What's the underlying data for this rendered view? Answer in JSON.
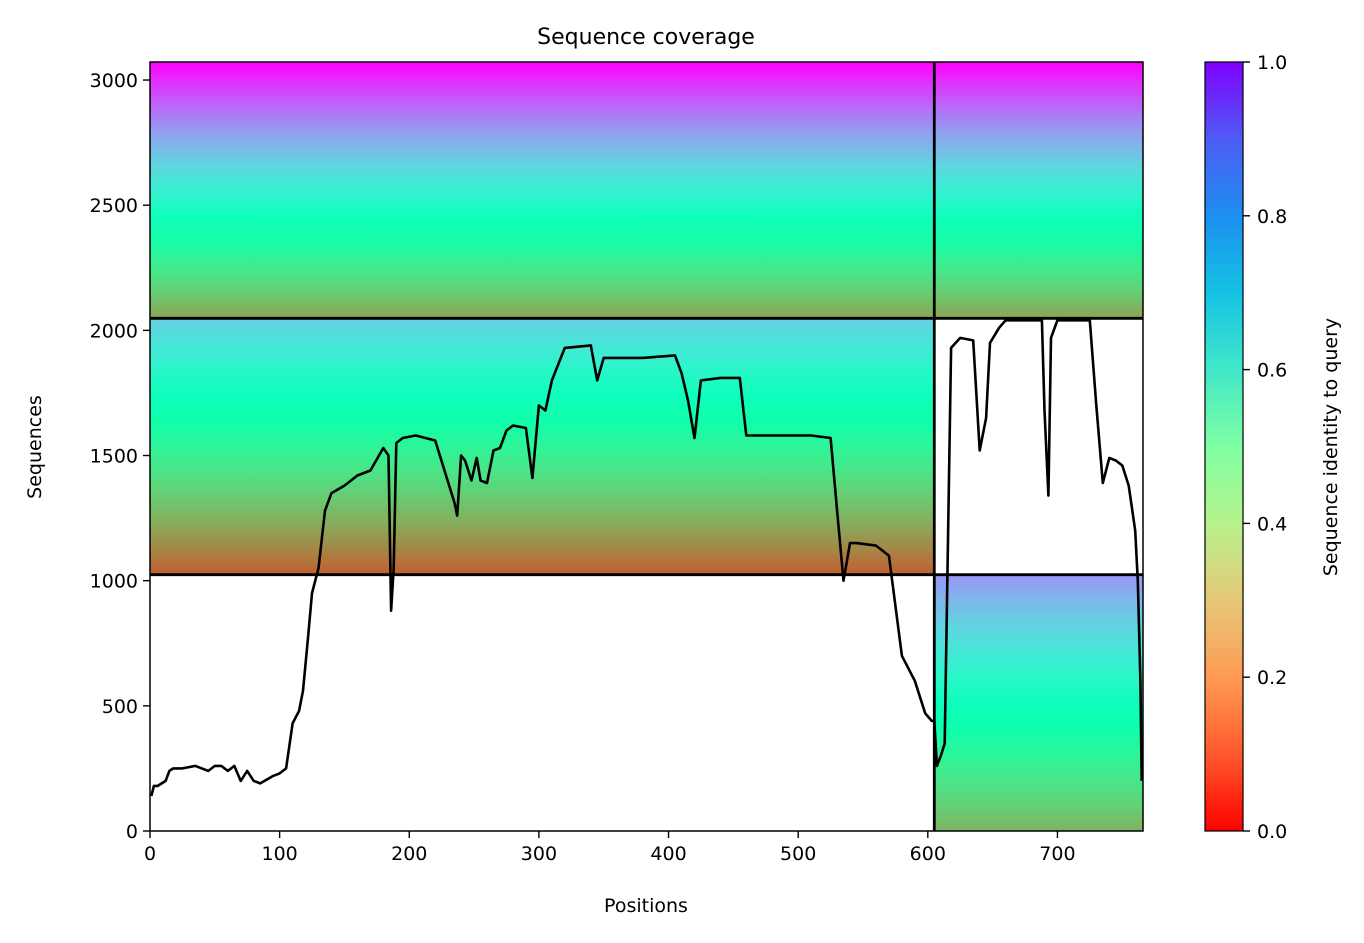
{
  "chart_data": {
    "type": "heatmap",
    "title": "Sequence coverage",
    "xlabel": "Positions",
    "ylabel": "Sequences",
    "xlim": [
      0,
      766
    ],
    "ylim": [
      0,
      3072
    ],
    "xticks": [
      0,
      100,
      200,
      300,
      400,
      500,
      600,
      700
    ],
    "yticks": [
      0,
      500,
      1000,
      1500,
      2000,
      2500,
      3000
    ],
    "xtick_labels": [
      "0",
      "100",
      "200",
      "300",
      "400",
      "500",
      "600",
      "700"
    ],
    "ytick_labels": [
      "0",
      "500",
      "1000",
      "1500",
      "2000",
      "2500",
      "3000"
    ],
    "grid": false,
    "colormap": "rainbow_r",
    "colorbar": {
      "label": "Sequence identity to query",
      "range": [
        0.0,
        1.0
      ],
      "ticks": [
        0.0,
        0.2,
        0.4,
        0.6,
        0.8,
        1.0
      ],
      "tick_labels": [
        "0.0",
        "0.2",
        "0.4",
        "0.6",
        "0.8",
        "1.0"
      ]
    },
    "chain_boundaries_x": [
      605
    ],
    "block_boundaries_y": [
      1024,
      2048
    ],
    "blocks": [
      {
        "x": [
          0,
          605
        ],
        "y": [
          2048,
          3072
        ],
        "identity_top": 1.0,
        "identity_bottom": 0.22
      },
      {
        "x": [
          605,
          766
        ],
        "y": [
          2048,
          3072
        ],
        "identity_top": 1.0,
        "identity_bottom": 0.22
      },
      {
        "x": [
          0,
          605
        ],
        "y": [
          1024,
          2048
        ],
        "identity_top": 0.7,
        "identity_bottom": 0.12
      },
      {
        "x": [
          605,
          766
        ],
        "y": [
          0,
          1024
        ],
        "identity_top": 0.8,
        "identity_bottom": 0.25
      }
    ],
    "coverage_line": {
      "color": "#000000",
      "x": [
        1,
        3,
        6,
        12,
        15,
        18,
        25,
        35,
        45,
        50,
        55,
        60,
        65,
        70,
        75,
        80,
        85,
        95,
        100,
        105,
        110,
        115,
        118,
        122,
        125,
        130,
        135,
        140,
        150,
        160,
        170,
        180,
        184,
        186,
        188,
        190,
        195,
        205,
        220,
        235,
        237,
        240,
        243,
        248,
        252,
        255,
        260,
        265,
        270,
        275,
        280,
        290,
        295,
        300,
        305,
        310,
        320,
        340,
        345,
        350,
        380,
        405,
        410,
        415,
        420,
        425,
        440,
        455,
        460,
        475,
        510,
        525,
        530,
        535,
        540,
        545,
        560,
        570,
        580,
        590,
        598,
        603,
        605,
        607,
        610,
        613,
        618,
        625,
        635,
        640,
        645,
        648,
        655,
        660,
        670,
        688,
        690,
        693,
        695,
        700,
        725,
        730,
        735,
        740,
        745,
        750,
        755,
        760,
        762,
        764,
        765
      ],
      "y": [
        140,
        180,
        180,
        200,
        240,
        250,
        250,
        260,
        240,
        260,
        260,
        240,
        260,
        200,
        240,
        200,
        190,
        220,
        230,
        250,
        430,
        480,
        560,
        780,
        950,
        1050,
        1280,
        1350,
        1380,
        1420,
        1440,
        1530,
        1500,
        880,
        1050,
        1550,
        1570,
        1580,
        1560,
        1310,
        1260,
        1500,
        1480,
        1400,
        1490,
        1400,
        1390,
        1520,
        1530,
        1600,
        1620,
        1610,
        1410,
        1700,
        1680,
        1800,
        1930,
        1940,
        1800,
        1890,
        1890,
        1900,
        1830,
        1720,
        1570,
        1800,
        1810,
        1810,
        1580,
        1580,
        1580,
        1570,
        1280,
        1000,
        1150,
        1150,
        1140,
        1100,
        700,
        600,
        470,
        440,
        440,
        260,
        300,
        350,
        1930,
        1970,
        1960,
        1520,
        1650,
        1950,
        2010,
        2040,
        2040,
        2040,
        1680,
        1340,
        1970,
        2040,
        2040,
        1700,
        1390,
        1490,
        1480,
        1460,
        1380,
        1200,
        1000,
        600,
        200
      ]
    }
  }
}
